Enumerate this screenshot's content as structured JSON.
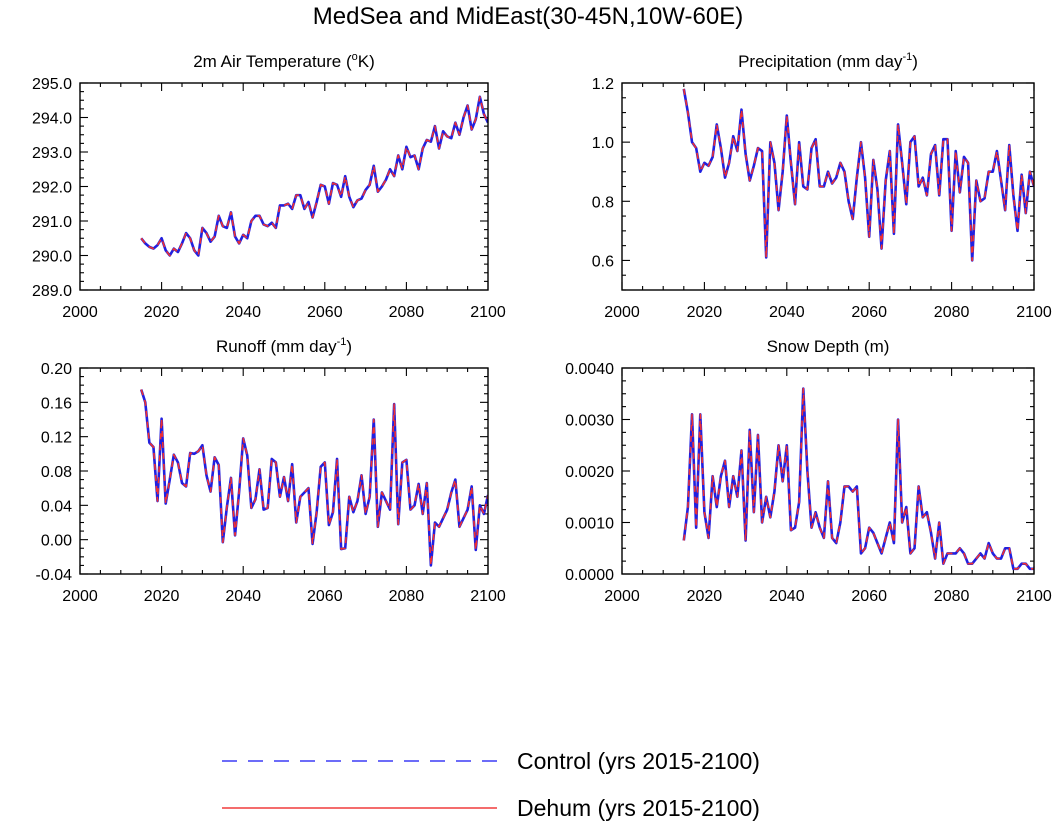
{
  "figure_title": "MedSea and MidEast(30-45N,10W-60E)",
  "legend": [
    {
      "label": "Control (yrs 2015-2100)",
      "color": "#3b3bf5",
      "style": "dashed"
    },
    {
      "label": "Dehum (yrs 2015-2100)",
      "color": "#f03c3c",
      "style": "solid"
    }
  ],
  "colors": {
    "control": "#2020e0",
    "dehum": "#f03030"
  },
  "chart_data": [
    {
      "type": "line",
      "title": "2m Air Temperature (°K)",
      "title_parts": {
        "pre": "2m Air Temperature (",
        "sup": "o",
        "post": "K)"
      },
      "xlim": [
        2000,
        2100
      ],
      "ylim": [
        289.0,
        295.0
      ],
      "xticks": [
        2000,
        2020,
        2040,
        2060,
        2080,
        2100
      ],
      "yticks": [
        289.0,
        290.0,
        291.0,
        292.0,
        293.0,
        294.0,
        295.0
      ],
      "ytick_labels": [
        "289.0",
        "290.0",
        "291.0",
        "292.0",
        "293.0",
        "294.0",
        "295.0"
      ],
      "x_start": 2015,
      "series": [
        {
          "name": "Control (yrs 2015-2100)",
          "values": [
            290.5,
            290.35,
            290.25,
            290.2,
            290.3,
            290.5,
            290.15,
            290.0,
            290.2,
            290.1,
            290.35,
            290.65,
            290.5,
            290.15,
            290.0,
            290.8,
            290.65,
            290.4,
            290.55,
            291.15,
            290.85,
            290.8,
            291.25,
            290.55,
            290.35,
            290.6,
            290.5,
            291.0,
            291.15,
            291.15,
            290.9,
            290.85,
            290.95,
            290.8,
            291.45,
            291.45,
            291.5,
            291.35,
            291.75,
            291.75,
            291.35,
            291.55,
            291.1,
            291.55,
            292.05,
            292.0,
            291.5,
            292.1,
            292.05,
            291.7,
            292.3,
            291.7,
            291.4,
            291.6,
            291.65,
            291.9,
            292.05,
            292.6,
            291.85,
            292.0,
            292.2,
            292.5,
            292.3,
            292.9,
            292.5,
            293.15,
            292.85,
            292.9,
            292.5,
            293.1,
            293.35,
            293.3,
            293.75,
            293.1,
            293.6,
            293.45,
            293.4,
            293.85,
            293.5,
            294.0,
            294.35,
            293.65,
            293.95,
            294.6,
            294.1,
            293.85
          ]
        },
        {
          "name": "Dehum (yrs 2015-2100)",
          "values": [
            290.5,
            290.35,
            290.25,
            290.2,
            290.3,
            290.5,
            290.15,
            290.0,
            290.2,
            290.1,
            290.35,
            290.65,
            290.5,
            290.15,
            290.0,
            290.8,
            290.65,
            290.4,
            290.55,
            291.15,
            290.85,
            290.8,
            291.25,
            290.55,
            290.35,
            290.6,
            290.5,
            291.0,
            291.15,
            291.15,
            290.9,
            290.85,
            290.95,
            290.8,
            291.45,
            291.45,
            291.5,
            291.35,
            291.75,
            291.75,
            291.35,
            291.55,
            291.1,
            291.55,
            292.05,
            292.0,
            291.5,
            292.1,
            292.05,
            291.7,
            292.3,
            291.7,
            291.4,
            291.6,
            291.65,
            291.9,
            292.05,
            292.6,
            291.85,
            292.0,
            292.2,
            292.5,
            292.3,
            292.9,
            292.5,
            293.15,
            292.85,
            292.9,
            292.5,
            293.1,
            293.35,
            293.3,
            293.75,
            293.1,
            293.6,
            293.45,
            293.4,
            293.85,
            293.5,
            294.0,
            294.35,
            293.65,
            293.95,
            294.6,
            294.1,
            293.85
          ]
        }
      ]
    },
    {
      "type": "line",
      "title": "Precipitation (mm day-1)",
      "title_parts": {
        "pre": "Precipitation (mm day",
        "sup": "-1",
        "post": ")"
      },
      "xlim": [
        2000,
        2100
      ],
      "ylim": [
        0.5,
        1.2
      ],
      "xticks": [
        2000,
        2020,
        2040,
        2060,
        2080,
        2100
      ],
      "yticks": [
        0.6,
        0.8,
        1.0,
        1.2
      ],
      "ytick_labels": [
        "0.6",
        "0.8",
        "1.0",
        "1.2"
      ],
      "x_start": 2015,
      "series": [
        {
          "name": "Control (yrs 2015-2100)",
          "values": [
            1.18,
            1.1,
            1.0,
            0.98,
            0.9,
            0.93,
            0.92,
            0.95,
            1.06,
            0.98,
            0.88,
            0.93,
            1.02,
            0.97,
            1.11,
            0.96,
            0.87,
            0.92,
            0.98,
            0.97,
            0.61,
            1.0,
            0.93,
            0.77,
            0.9,
            1.09,
            0.93,
            0.79,
            1.0,
            0.85,
            0.84,
            0.98,
            1.01,
            0.85,
            0.85,
            0.9,
            0.86,
            0.88,
            0.93,
            0.9,
            0.8,
            0.74,
            0.88,
            1.0,
            0.88,
            0.68,
            0.94,
            0.84,
            0.64,
            0.87,
            0.97,
            0.69,
            1.06,
            0.93,
            0.79,
            1.0,
            1.02,
            0.85,
            0.88,
            0.82,
            0.96,
            0.99,
            0.82,
            1.01,
            1.01,
            0.7,
            0.97,
            0.83,
            0.95,
            0.93,
            0.6,
            0.87,
            0.8,
            0.81,
            0.9,
            0.9,
            0.97,
            0.87,
            0.77,
            0.99,
            0.82,
            0.7,
            0.89,
            0.76,
            0.9,
            0.85
          ]
        },
        {
          "name": "Dehum (yrs 2015-2100)",
          "values": [
            1.18,
            1.1,
            1.0,
            0.98,
            0.9,
            0.93,
            0.92,
            0.95,
            1.06,
            0.98,
            0.88,
            0.93,
            1.02,
            0.97,
            1.11,
            0.96,
            0.87,
            0.92,
            0.98,
            0.97,
            0.61,
            1.0,
            0.93,
            0.77,
            0.9,
            1.09,
            0.93,
            0.79,
            1.0,
            0.85,
            0.84,
            0.98,
            1.01,
            0.85,
            0.85,
            0.9,
            0.86,
            0.88,
            0.93,
            0.9,
            0.8,
            0.74,
            0.88,
            1.0,
            0.88,
            0.68,
            0.94,
            0.84,
            0.64,
            0.87,
            0.97,
            0.69,
            1.06,
            0.93,
            0.79,
            1.0,
            1.02,
            0.85,
            0.88,
            0.82,
            0.96,
            0.99,
            0.82,
            1.01,
            1.01,
            0.7,
            0.97,
            0.83,
            0.95,
            0.93,
            0.6,
            0.87,
            0.8,
            0.81,
            0.9,
            0.9,
            0.97,
            0.87,
            0.77,
            0.99,
            0.82,
            0.7,
            0.89,
            0.76,
            0.9,
            0.85
          ]
        }
      ]
    },
    {
      "type": "line",
      "title": "Runoff (mm day-1)",
      "title_parts": {
        "pre": "Runoff (mm day",
        "sup": "-1",
        "post": ")"
      },
      "xlim": [
        2000,
        2100
      ],
      "ylim": [
        -0.04,
        0.2
      ],
      "xticks": [
        2000,
        2020,
        2040,
        2060,
        2080,
        2100
      ],
      "yticks": [
        -0.04,
        0.0,
        0.04,
        0.08,
        0.12,
        0.16,
        0.2
      ],
      "ytick_labels": [
        "-0.04",
        "0.00",
        "0.04",
        "0.08",
        "0.12",
        "0.16",
        "0.20"
      ],
      "x_start": 2015,
      "series": [
        {
          "name": "Control (yrs 2015-2100)",
          "values": [
            0.175,
            0.16,
            0.113,
            0.108,
            0.045,
            0.141,
            0.042,
            0.07,
            0.099,
            0.09,
            0.066,
            0.062,
            0.101,
            0.1,
            0.103,
            0.11,
            0.075,
            0.056,
            0.096,
            0.087,
            -0.003,
            0.038,
            0.072,
            0.005,
            0.056,
            0.118,
            0.098,
            0.037,
            0.047,
            0.082,
            0.035,
            0.037,
            0.094,
            0.09,
            0.05,
            0.073,
            0.045,
            0.088,
            0.02,
            0.05,
            0.055,
            0.06,
            -0.005,
            0.032,
            0.085,
            0.09,
            0.017,
            0.032,
            0.094,
            -0.011,
            -0.01,
            0.05,
            0.032,
            0.045,
            0.075,
            0.03,
            0.05,
            0.14,
            0.015,
            0.055,
            0.045,
            0.035,
            0.158,
            0.018,
            0.09,
            0.093,
            0.035,
            0.04,
            0.065,
            0.03,
            0.066,
            -0.03,
            0.02,
            0.015,
            0.025,
            0.035,
            0.055,
            0.07,
            0.015,
            0.025,
            0.035,
            0.062,
            -0.012,
            0.04,
            0.03,
            0.052
          ]
        },
        {
          "name": "Dehum (yrs 2015-2100)",
          "values": [
            0.175,
            0.16,
            0.113,
            0.108,
            0.045,
            0.141,
            0.042,
            0.07,
            0.099,
            0.09,
            0.066,
            0.062,
            0.101,
            0.1,
            0.103,
            0.11,
            0.075,
            0.056,
            0.096,
            0.087,
            -0.003,
            0.038,
            0.072,
            0.005,
            0.056,
            0.118,
            0.098,
            0.037,
            0.047,
            0.082,
            0.035,
            0.037,
            0.094,
            0.09,
            0.05,
            0.073,
            0.045,
            0.088,
            0.02,
            0.05,
            0.055,
            0.06,
            -0.005,
            0.032,
            0.085,
            0.09,
            0.017,
            0.032,
            0.094,
            -0.011,
            -0.01,
            0.05,
            0.032,
            0.045,
            0.075,
            0.03,
            0.05,
            0.14,
            0.015,
            0.055,
            0.045,
            0.035,
            0.158,
            0.018,
            0.09,
            0.093,
            0.035,
            0.04,
            0.065,
            0.03,
            0.066,
            -0.03,
            0.02,
            0.015,
            0.025,
            0.035,
            0.055,
            0.07,
            0.015,
            0.025,
            0.035,
            0.062,
            -0.012,
            0.04,
            0.03,
            0.052
          ]
        }
      ]
    },
    {
      "type": "line",
      "title": "Snow Depth (m)",
      "title_parts": {
        "pre": "Snow Depth (m)",
        "sup": "",
        "post": ""
      },
      "xlim": [
        2000,
        2100
      ],
      "ylim": [
        0.0,
        0.004
      ],
      "xticks": [
        2000,
        2020,
        2040,
        2060,
        2080,
        2100
      ],
      "yticks": [
        0.0,
        0.001,
        0.002,
        0.003,
        0.004
      ],
      "ytick_labels": [
        "0.0000",
        "0.0010",
        "0.0020",
        "0.0030",
        "0.0040"
      ],
      "x_start": 2015,
      "series": [
        {
          "name": "Control (yrs 2015-2100)",
          "values": [
            0.00065,
            0.0013,
            0.0031,
            0.0009,
            0.0031,
            0.0012,
            0.0007,
            0.0019,
            0.0013,
            0.0019,
            0.0022,
            0.0013,
            0.0019,
            0.0015,
            0.0024,
            0.00065,
            0.0028,
            0.0012,
            0.0027,
            0.001,
            0.0015,
            0.0011,
            0.0016,
            0.0025,
            0.0018,
            0.0025,
            0.00085,
            0.0009,
            0.0014,
            0.0036,
            0.002,
            0.0009,
            0.0012,
            0.0009,
            0.0007,
            0.0018,
            0.0007,
            0.0006,
            0.001,
            0.0017,
            0.0017,
            0.0016,
            0.0017,
            0.0004,
            0.0005,
            0.0009,
            0.0008,
            0.0006,
            0.0004,
            0.0007,
            0.001,
            0.0006,
            0.003,
            0.001,
            0.0013,
            0.0004,
            0.0005,
            0.0017,
            0.0011,
            0.0012,
            0.0008,
            0.0003,
            0.001,
            0.0002,
            0.0004,
            0.0004,
            0.0004,
            0.0005,
            0.0004,
            0.0002,
            0.0002,
            0.0003,
            0.0004,
            0.0003,
            0.0006,
            0.0004,
            0.0003,
            0.0003,
            0.0005,
            0.0005,
            0.0001,
            0.0001,
            0.0002,
            0.0002,
            0.0001,
            0.0001
          ]
        },
        {
          "name": "Dehum (yrs 2015-2100)",
          "values": [
            0.00065,
            0.0013,
            0.0031,
            0.0009,
            0.0031,
            0.0012,
            0.0007,
            0.0019,
            0.0013,
            0.0019,
            0.0022,
            0.0013,
            0.0019,
            0.0015,
            0.0024,
            0.00065,
            0.0028,
            0.0012,
            0.0027,
            0.001,
            0.0015,
            0.0011,
            0.0016,
            0.0025,
            0.0018,
            0.0025,
            0.00085,
            0.0009,
            0.0014,
            0.0036,
            0.002,
            0.0009,
            0.0012,
            0.0009,
            0.0007,
            0.0018,
            0.0007,
            0.0006,
            0.001,
            0.0017,
            0.0017,
            0.0016,
            0.0017,
            0.0004,
            0.0005,
            0.0009,
            0.0008,
            0.0006,
            0.0004,
            0.0007,
            0.001,
            0.0006,
            0.003,
            0.001,
            0.0013,
            0.0004,
            0.0005,
            0.0017,
            0.0011,
            0.0012,
            0.0008,
            0.0003,
            0.001,
            0.0002,
            0.0004,
            0.0004,
            0.0004,
            0.0005,
            0.0004,
            0.0002,
            0.0002,
            0.0003,
            0.0004,
            0.0003,
            0.0006,
            0.0004,
            0.0003,
            0.0003,
            0.0005,
            0.0005,
            0.0001,
            0.0001,
            0.0002,
            0.0002,
            0.0001,
            0.0001
          ]
        }
      ]
    }
  ]
}
